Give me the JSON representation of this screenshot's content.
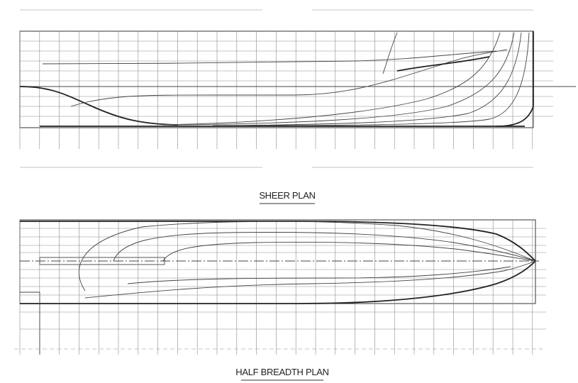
{
  "sheer_plan": {
    "title": "SHEER PLAN"
  },
  "half_breadth_plan": {
    "title": "HALF BREADTH PLAN"
  }
}
